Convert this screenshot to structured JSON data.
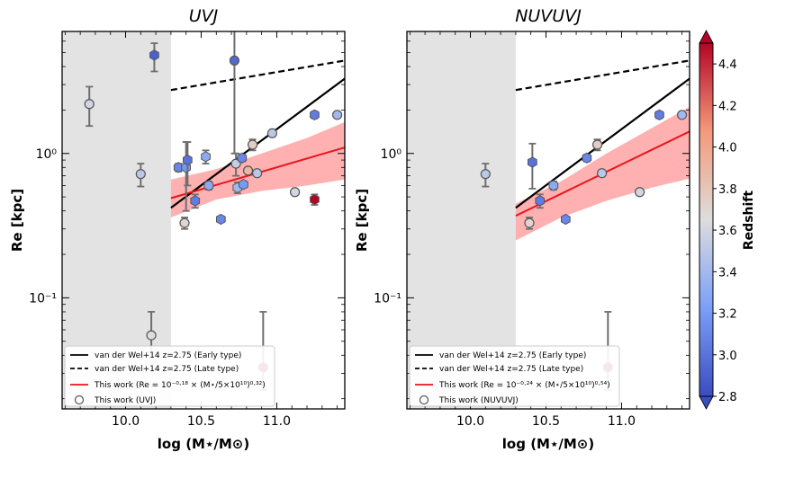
{
  "chart_data": [
    {
      "type": "scatter",
      "title": "UVJ",
      "xlabel": "log (M⋆/M⊙)",
      "ylabel": "Re [kpc]",
      "xlim": [
        9.58,
        11.45
      ],
      "ylim": [
        0.017,
        7.0
      ],
      "yscale": "log",
      "xticks": [
        {
          "v": 10.0,
          "label": "10.0"
        },
        {
          "v": 10.5,
          "label": "10.5"
        },
        {
          "v": 11.0,
          "label": "11.0"
        }
      ],
      "yticks": [
        {
          "v": 1.0,
          "label": "10⁰"
        },
        {
          "v": 0.1,
          "label": "10⁻¹"
        }
      ],
      "shaded_region_x": [
        9.58,
        10.3
      ],
      "early_type_line": {
        "x": [
          10.3,
          11.45
        ],
        "y": [
          0.42,
          3.3
        ]
      },
      "late_type_line": {
        "x": [
          10.3,
          11.45
        ],
        "y": [
          2.75,
          4.4
        ]
      },
      "fit_line": {
        "x": [
          10.3,
          11.45
        ],
        "y": [
          0.49,
          1.1
        ]
      },
      "fit_band_lower": [
        0.36,
        0.48,
        0.55,
        0.6,
        0.66
      ],
      "fit_band_upper": [
        0.66,
        0.78,
        1.0,
        1.28,
        1.65
      ],
      "fit_band_x": [
        10.3,
        10.6,
        10.9,
        11.2,
        11.45
      ],
      "points": [
        {
          "x": 9.76,
          "y": 2.2,
          "z": 3.6,
          "err": [
            0.65,
            0.7
          ],
          "shape": "circle"
        },
        {
          "x": 10.1,
          "y": 0.72,
          "z": 3.5,
          "err": [
            0.13,
            0.13
          ],
          "shape": "circle"
        },
        {
          "x": 10.17,
          "y": 0.055,
          "z": 3.65,
          "err": [
            0.013,
            0.025
          ],
          "shape": "circle"
        },
        {
          "x": 10.19,
          "y": 4.8,
          "z": 2.9,
          "err": [
            1.1,
            1.0
          ],
          "shape": "hex"
        },
        {
          "x": 10.35,
          "y": 0.8,
          "z": 3.1,
          "err": [
            0.05,
            0.05
          ],
          "shape": "hex"
        },
        {
          "x": 10.39,
          "y": 0.33,
          "z": 3.7,
          "err": [
            0.03,
            0.03
          ],
          "shape": "circle"
        },
        {
          "x": 10.4,
          "y": 0.8,
          "z": 3.2,
          "err": [
            0.4,
            0.4
          ],
          "shape": "hex"
        },
        {
          "x": 10.41,
          "y": 0.9,
          "z": 3.0,
          "err": [
            0.3,
            0.3
          ],
          "shape": "hex"
        },
        {
          "x": 10.46,
          "y": 0.47,
          "z": 3.05,
          "err": [
            0.05,
            0.05
          ],
          "shape": "hex"
        },
        {
          "x": 10.53,
          "y": 0.95,
          "z": 3.3,
          "err": [
            0.1,
            0.1
          ],
          "shape": "hex"
        },
        {
          "x": 10.55,
          "y": 0.6,
          "z": 3.3,
          "err": [
            0.04,
            0.04
          ],
          "shape": "hex"
        },
        {
          "x": 10.63,
          "y": 0.35,
          "z": 3.1,
          "err": [
            0.0,
            0.0
          ],
          "shape": "hex"
        },
        {
          "x": 10.72,
          "y": 4.4,
          "z": 2.95,
          "err": [
            3.4,
            3.0
          ],
          "shape": "circle"
        },
        {
          "x": 10.73,
          "y": 0.85,
          "z": 3.55,
          "err": [
            0.15,
            0.15
          ],
          "shape": "circle"
        },
        {
          "x": 10.74,
          "y": 0.58,
          "z": 3.4,
          "err": [
            0.05,
            0.05
          ],
          "shape": "hex"
        },
        {
          "x": 10.77,
          "y": 0.93,
          "z": 3.1,
          "err": [
            0.05,
            0.05
          ],
          "shape": "hex"
        },
        {
          "x": 10.78,
          "y": 0.61,
          "z": 3.2,
          "err": [
            0.03,
            0.03
          ],
          "shape": "hex"
        },
        {
          "x": 10.81,
          "y": 0.76,
          "z": 3.9,
          "err": [
            0.0,
            0.0
          ],
          "shape": "circle"
        },
        {
          "x": 10.84,
          "y": 1.15,
          "z": 3.75,
          "err": [
            0.1,
            0.1
          ],
          "shape": "circle"
        },
        {
          "x": 10.87,
          "y": 0.73,
          "z": 3.5,
          "err": [
            0.0,
            0.0
          ],
          "shape": "circle"
        },
        {
          "x": 10.91,
          "y": 0.033,
          "z": 4.5,
          "err": [
            0.01,
            0.047
          ],
          "shape": "circle"
        },
        {
          "x": 10.97,
          "y": 1.38,
          "z": 3.5,
          "err": [
            0.0,
            0.0
          ],
          "shape": "circle"
        },
        {
          "x": 11.12,
          "y": 0.54,
          "z": 3.6,
          "err": [
            0.0,
            0.0
          ],
          "shape": "circle"
        },
        {
          "x": 11.25,
          "y": 1.85,
          "z": 3.05,
          "err": [
            0.1,
            0.1
          ],
          "shape": "hex"
        },
        {
          "x": 11.25,
          "y": 0.48,
          "z": 4.5,
          "err": [
            0.04,
            0.04
          ],
          "shape": "hex"
        },
        {
          "x": 11.4,
          "y": 1.85,
          "z": 3.4,
          "err": [
            0.0,
            0.0
          ],
          "shape": "circle"
        }
      ],
      "legend": [
        {
          "kind": "solid",
          "label": "van der Wel+14 z=2.75 (Early type)"
        },
        {
          "kind": "dashed",
          "label": "van der Wel+14 z=2.75 (Late type)"
        },
        {
          "kind": "red",
          "label": "This work (Re = 10⁻⁰·¹⁸ × (M⋆/5×10¹⁰)⁰·³²)"
        },
        {
          "kind": "circle",
          "label": "This work (UVJ)"
        }
      ]
    },
    {
      "type": "scatter",
      "title": "NUVUVJ",
      "xlabel": "log (M⋆/M⊙)",
      "ylabel": "Re [kpc]",
      "xlim": [
        9.58,
        11.45
      ],
      "ylim": [
        0.017,
        7.0
      ],
      "yscale": "log",
      "xticks": [
        {
          "v": 10.0,
          "label": "10.0"
        },
        {
          "v": 10.5,
          "label": "10.5"
        },
        {
          "v": 11.0,
          "label": "11.0"
        }
      ],
      "yticks": [
        {
          "v": 1.0,
          "label": "10⁰"
        },
        {
          "v": 0.1,
          "label": "10⁻¹"
        }
      ],
      "shaded_region_x": [
        9.58,
        10.3
      ],
      "early_type_line": {
        "x": [
          10.3,
          11.45
        ],
        "y": [
          0.42,
          3.3
        ]
      },
      "late_type_line": {
        "x": [
          10.3,
          11.45
        ],
        "y": [
          2.75,
          4.4
        ]
      },
      "fit_line": {
        "x": [
          10.3,
          11.45
        ],
        "y": [
          0.37,
          1.42
        ]
      },
      "fit_band_lower": [
        0.25,
        0.36,
        0.47,
        0.58,
        0.67
      ],
      "fit_band_upper": [
        0.45,
        0.64,
        1.0,
        1.5,
        2.1
      ],
      "fit_band_x": [
        10.3,
        10.6,
        10.9,
        11.2,
        11.45
      ],
      "points": [
        {
          "x": 10.1,
          "y": 0.72,
          "z": 3.5,
          "err": [
            0.13,
            0.13
          ],
          "shape": "circle"
        },
        {
          "x": 10.39,
          "y": 0.33,
          "z": 3.7,
          "err": [
            0.03,
            0.03
          ],
          "shape": "circle"
        },
        {
          "x": 10.41,
          "y": 0.87,
          "z": 3.0,
          "err": [
            0.3,
            0.3
          ],
          "shape": "hex"
        },
        {
          "x": 10.46,
          "y": 0.47,
          "z": 3.05,
          "err": [
            0.05,
            0.05
          ],
          "shape": "hex"
        },
        {
          "x": 10.55,
          "y": 0.6,
          "z": 3.3,
          "err": [
            0.04,
            0.04
          ],
          "shape": "hex"
        },
        {
          "x": 10.63,
          "y": 0.35,
          "z": 3.1,
          "err": [
            0.0,
            0.0
          ],
          "shape": "hex"
        },
        {
          "x": 10.77,
          "y": 0.93,
          "z": 3.1,
          "err": [
            0.05,
            0.05
          ],
          "shape": "hex"
        },
        {
          "x": 10.84,
          "y": 1.15,
          "z": 3.75,
          "err": [
            0.1,
            0.1
          ],
          "shape": "circle"
        },
        {
          "x": 10.87,
          "y": 0.73,
          "z": 3.5,
          "err": [
            0.0,
            0.0
          ],
          "shape": "circle"
        },
        {
          "x": 10.91,
          "y": 0.033,
          "z": 4.5,
          "err": [
            0.01,
            0.047
          ],
          "shape": "circle"
        },
        {
          "x": 11.12,
          "y": 0.54,
          "z": 3.6,
          "err": [
            0.0,
            0.0
          ],
          "shape": "circle"
        },
        {
          "x": 11.25,
          "y": 1.85,
          "z": 3.05,
          "err": [
            0.1,
            0.1
          ],
          "shape": "hex"
        },
        {
          "x": 11.4,
          "y": 1.85,
          "z": 3.4,
          "err": [
            0.0,
            0.0
          ],
          "shape": "circle"
        }
      ],
      "legend": [
        {
          "kind": "solid",
          "label": "van der Wel+14 z=2.75 (Early type)"
        },
        {
          "kind": "dashed",
          "label": "van der Wel+14 z=2.75 (Late type)"
        },
        {
          "kind": "red",
          "label": "This work (Re = 10⁻⁰·²⁴ × (M⋆/5×10¹⁰)⁰·⁵⁴)"
        },
        {
          "kind": "circle",
          "label": "This work (NUVUVJ)"
        }
      ]
    }
  ],
  "colorbar": {
    "label": "Redshift",
    "range": [
      2.8,
      4.5
    ],
    "ticks": [
      {
        "v": 2.8,
        "label": "2.8"
      },
      {
        "v": 3.0,
        "label": "3.0"
      },
      {
        "v": 3.2,
        "label": "3.2"
      },
      {
        "v": 3.4,
        "label": "3.4"
      },
      {
        "v": 3.6,
        "label": "3.6"
      },
      {
        "v": 3.8,
        "label": "3.8"
      },
      {
        "v": 4.0,
        "label": "4.0"
      },
      {
        "v": 4.2,
        "label": "4.2"
      },
      {
        "v": 4.4,
        "label": "4.4"
      }
    ],
    "colormap": "coolwarm",
    "low_color": "#3b4cc0",
    "mid_color": "#dddddd",
    "high_color": "#b40426"
  },
  "colors": {
    "shade": "#e3e3e3",
    "fit": "#e8141b",
    "band": "#ff8f8f",
    "errorbar": "#6e6e6e"
  }
}
